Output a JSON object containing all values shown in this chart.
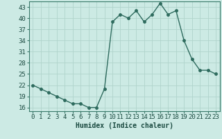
{
  "x": [
    0,
    1,
    2,
    3,
    4,
    5,
    6,
    7,
    8,
    9,
    10,
    11,
    12,
    13,
    14,
    15,
    16,
    17,
    18,
    19,
    20,
    21,
    22,
    23
  ],
  "y": [
    22,
    21,
    20,
    19,
    18,
    17,
    17,
    16,
    16,
    21,
    39,
    41,
    40,
    42,
    39,
    41,
    44,
    41,
    42,
    34,
    29,
    26,
    26,
    25
  ],
  "line_color": "#2e6b5e",
  "marker_color": "#2e6b5e",
  "bg_color": "#cceae4",
  "grid_color": "#b0d4cc",
  "xlabel": "Humidex (Indice chaleur)",
  "xlim": [
    -0.5,
    23.5
  ],
  "ylim": [
    15,
    44.5
  ],
  "yticks": [
    16,
    19,
    22,
    25,
    28,
    31,
    34,
    37,
    40,
    43
  ],
  "xticks": [
    0,
    1,
    2,
    3,
    4,
    5,
    6,
    7,
    8,
    9,
    10,
    11,
    12,
    13,
    14,
    15,
    16,
    17,
    18,
    19,
    20,
    21,
    22,
    23
  ],
  "fontsize_label": 7,
  "fontsize_tick": 6.5,
  "marker_size": 2.5,
  "line_width": 1.0
}
